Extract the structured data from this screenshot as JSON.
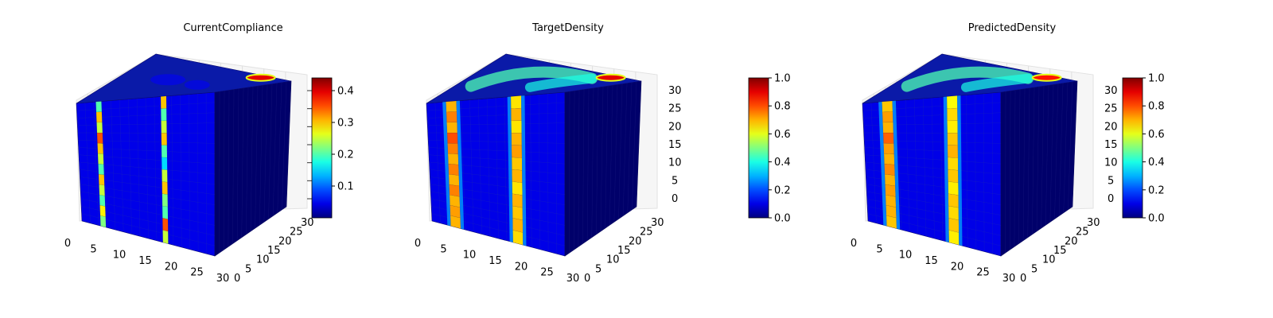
{
  "chart_data": [
    {
      "type": "voxel-3d",
      "title": "CurrentCompliance",
      "xticks": [
        "0",
        "5",
        "10",
        "15",
        "20",
        "25",
        "30"
      ],
      "yticks": [
        "0",
        "5",
        "10",
        "15",
        "20",
        "25",
        "30"
      ],
      "zticks": [],
      "colorbar": {
        "min": 0.0,
        "max": 0.44,
        "ticks": [
          "0.1",
          "0.2",
          "0.3",
          "0.4"
        ],
        "tick_values": [
          0.1,
          0.2,
          0.3,
          0.4
        ],
        "colormap": "jet"
      },
      "bars": [
        {
          "x": 4,
          "profile": [
            0.2,
            0.3,
            0.25,
            0.35,
            0.3,
            0.25,
            0.2,
            0.3,
            0.25,
            0.2,
            0.28,
            0.22
          ]
        },
        {
          "x": 19,
          "profile": [
            0.3,
            0.2,
            0.25,
            0.3,
            0.2,
            0.15,
            0.25,
            0.3,
            0.22,
            0.2,
            0.35,
            0.25
          ]
        }
      ],
      "top_hotspot_value": 0.44,
      "side_value": 0.02,
      "front_value": 0.02
    },
    {
      "type": "voxel-3d",
      "title": "TargetDensity",
      "xticks": [
        "0",
        "5",
        "10",
        "15",
        "20",
        "25",
        "30"
      ],
      "yticks": [
        "0",
        "5",
        "10",
        "15",
        "20",
        "25",
        "30"
      ],
      "zticks": [
        "0",
        "5",
        "10",
        "15",
        "20",
        "25",
        "30"
      ],
      "colorbar": {
        "min": 0.0,
        "max": 1.0,
        "ticks": [
          "0.0",
          "0.2",
          "0.4",
          "0.6",
          "0.8",
          "1.0"
        ],
        "tick_values": [
          0.0,
          0.2,
          0.4,
          0.6,
          0.8,
          1.0
        ],
        "colormap": "jet"
      },
      "bars": [
        {
          "x": 4,
          "profile": [
            0.7,
            0.75,
            0.7,
            0.8,
            0.75,
            0.7,
            0.75,
            0.7,
            0.75,
            0.7,
            0.72,
            0.7
          ]
        },
        {
          "x": 19,
          "profile": [
            0.65,
            0.7,
            0.65,
            0.7,
            0.72,
            0.68,
            0.7,
            0.65,
            0.7,
            0.68,
            0.7,
            0.66
          ]
        }
      ],
      "top_hotspot_value": 1.0,
      "side_value": 0.03,
      "front_value": 0.03
    },
    {
      "type": "voxel-3d",
      "title": "PredictedDensity",
      "xticks": [
        "0",
        "5",
        "10",
        "15",
        "20",
        "25",
        "30"
      ],
      "yticks": [
        "0",
        "5",
        "10",
        "15",
        "20",
        "25",
        "30"
      ],
      "zticks": [
        "0",
        "5",
        "10",
        "15",
        "20",
        "25",
        "30"
      ],
      "colorbar": {
        "min": 0.0,
        "max": 1.0,
        "ticks": [
          "0.0",
          "0.2",
          "0.4",
          "0.6",
          "0.8",
          "1.0"
        ],
        "tick_values": [
          0.0,
          0.2,
          0.4,
          0.6,
          0.8,
          1.0
        ],
        "colormap": "jet"
      },
      "bars": [
        {
          "x": 4,
          "profile": [
            0.68,
            0.72,
            0.7,
            0.78,
            0.72,
            0.7,
            0.74,
            0.7,
            0.72,
            0.7,
            0.7,
            0.68
          ]
        },
        {
          "x": 19,
          "profile": [
            0.62,
            0.66,
            0.64,
            0.68,
            0.7,
            0.66,
            0.68,
            0.64,
            0.68,
            0.66,
            0.68,
            0.64
          ]
        }
      ],
      "top_hotspot_value": 0.95,
      "side_value": 0.03,
      "front_value": 0.03
    }
  ]
}
